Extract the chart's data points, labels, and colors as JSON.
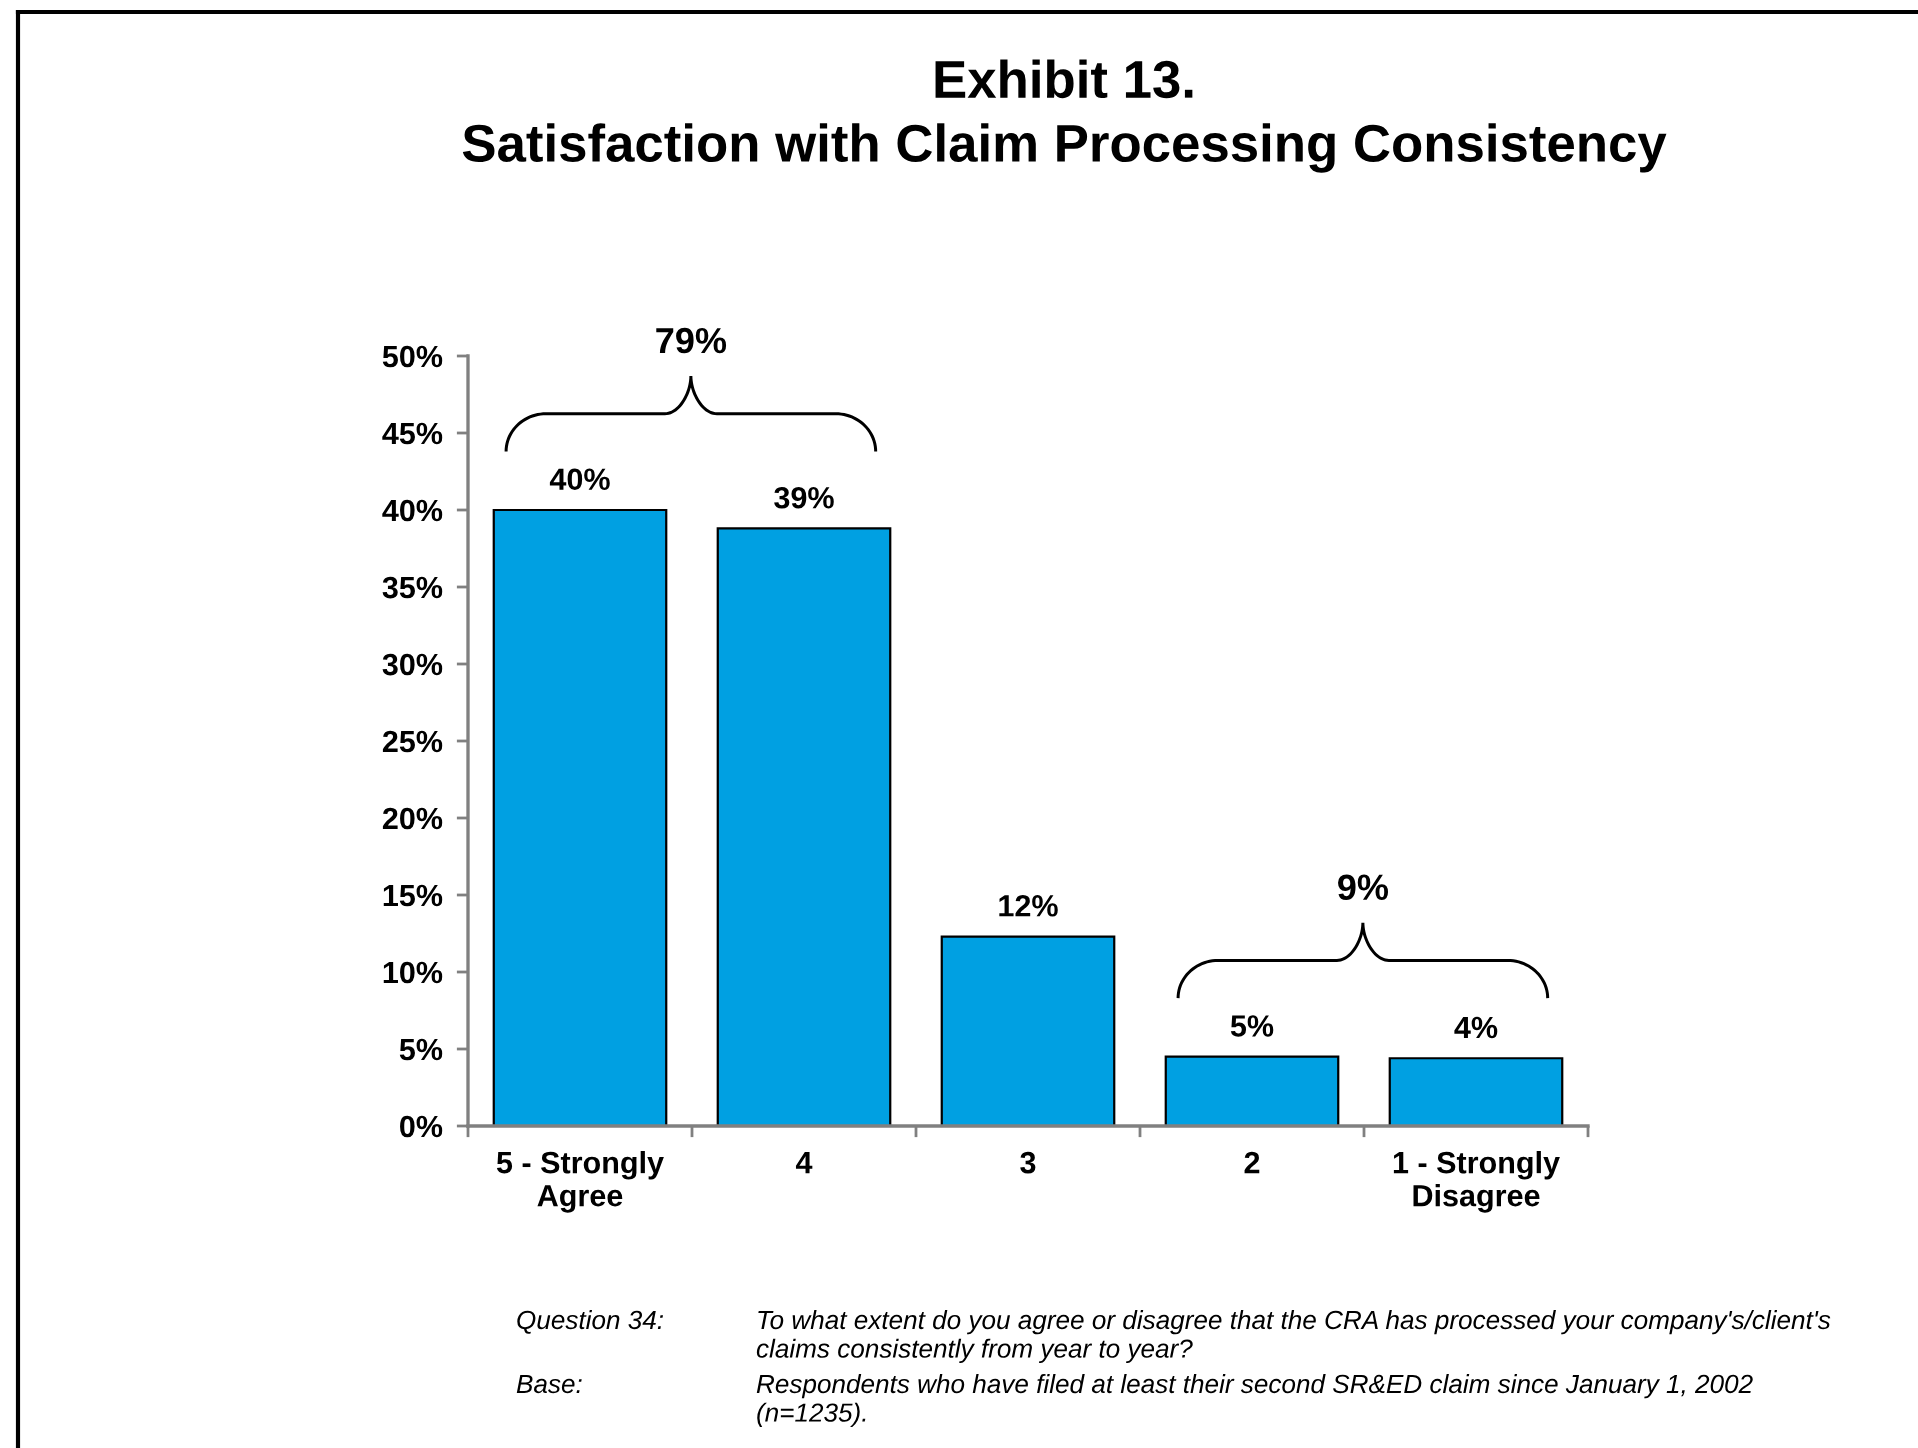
{
  "chart_data": {
    "type": "bar",
    "title": "Exhibit 13.",
    "subtitle": "Satisfaction with Claim Processing Consistency",
    "categories": [
      "5 - Strongly Agree",
      "4",
      "3",
      "2",
      "1 - Strongly Disagree"
    ],
    "values": [
      40,
      38.8,
      12.3,
      4.5,
      4.4
    ],
    "value_labels": [
      "40%",
      "39%",
      "12%",
      "5%",
      "4%"
    ],
    "color": "#00a0e2",
    "ylim": [
      0,
      50
    ],
    "yticks": [
      {
        "value": 0,
        "label": "0%"
      },
      {
        "value": 5,
        "label": "5%"
      },
      {
        "value": 10,
        "label": "10%"
      },
      {
        "value": 15,
        "label": "15%"
      },
      {
        "value": 20,
        "label": "20%"
      },
      {
        "value": 25,
        "label": "25%"
      },
      {
        "value": 30,
        "label": "30%"
      },
      {
        "value": 35,
        "label": "35%"
      },
      {
        "value": 40,
        "label": "40%"
      },
      {
        "value": 45,
        "label": "45%"
      },
      {
        "value": 50,
        "label": "50%"
      }
    ],
    "annotations": [
      "79%",
      "9%",
      "Question 34:",
      "To what extent do you agree or disagree that the CRA has processed your company's/client's claims consistently from year to year?",
      "Base:",
      "Respondents who have filed at least their second SR&ED claim since January 1, 2002 (n=1235)."
    ]
  }
}
